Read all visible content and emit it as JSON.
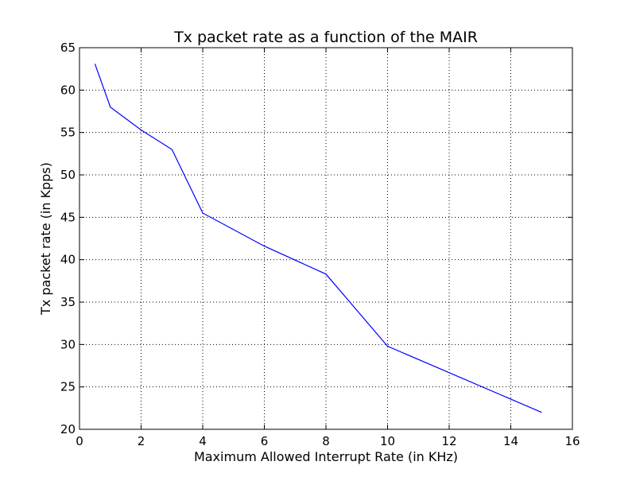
{
  "chart_data": {
    "type": "line",
    "title": "Tx packet rate as a function of the MAIR",
    "xlabel": "Maximum Allowed Interrupt Rate (in KHz)",
    "ylabel": "Tx packet rate (in Kpps)",
    "xlim": [
      0,
      16
    ],
    "ylim": [
      20,
      65
    ],
    "x_ticks": [
      0,
      2,
      4,
      6,
      8,
      10,
      12,
      14,
      16
    ],
    "y_ticks": [
      20,
      25,
      30,
      35,
      40,
      45,
      50,
      55,
      60,
      65
    ],
    "grid": true,
    "legend": false,
    "series": [
      {
        "color": "#0000ff",
        "x": [
          0.5,
          1,
          2,
          3,
          4,
          6,
          8,
          10,
          15
        ],
        "y": [
          63.1,
          58.0,
          55.3,
          53.0,
          45.5,
          41.6,
          38.3,
          29.8,
          22.0
        ]
      }
    ]
  }
}
